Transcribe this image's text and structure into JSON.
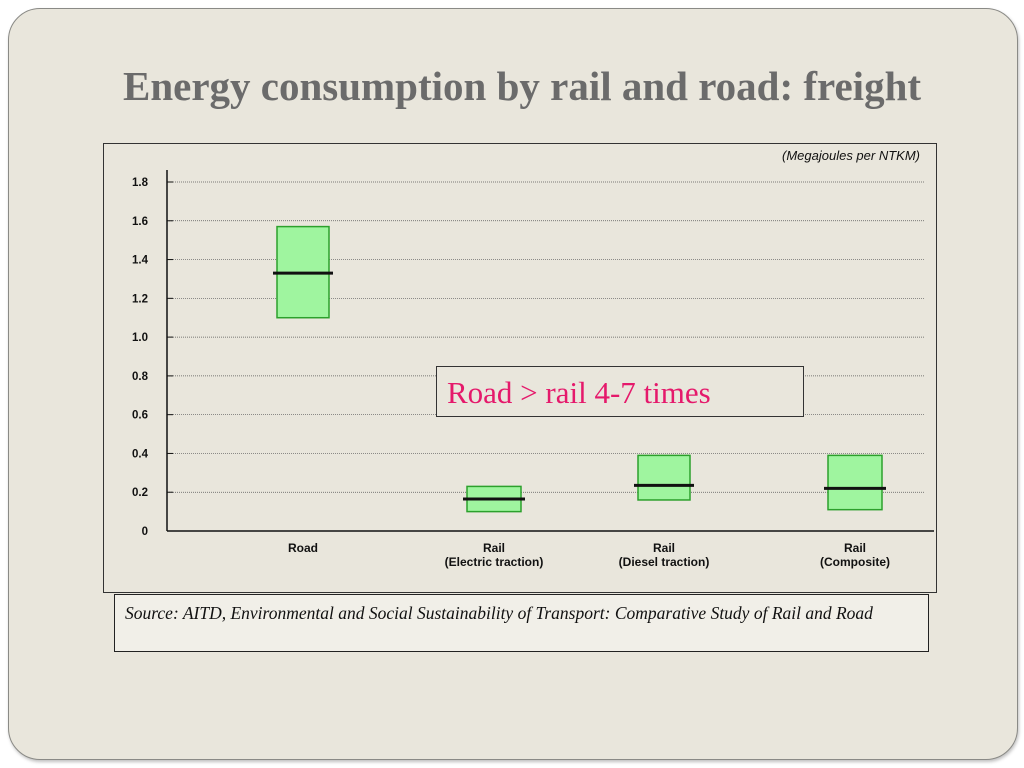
{
  "slide": {
    "title": "Energy consumption by rail and road: freight",
    "callout": "Road > rail 4-7 times",
    "source": "Source: AITD, Environmental and Social Sustainability of Transport: Comparative Study of Rail and Road"
  },
  "chart_data": {
    "type": "bar",
    "subtype": "range-box",
    "unit_label": "(Megajoules per NTKM)",
    "ylim": [
      0,
      1.8
    ],
    "yticks": [
      "0",
      "0.2",
      "0.4",
      "0.6",
      "0.8",
      "1.0",
      "1.2",
      "1.4",
      "1.6",
      "1.8"
    ],
    "grid": true,
    "categories": [
      {
        "lines": [
          "Road"
        ]
      },
      {
        "lines": [
          "Rail",
          "(Electric traction)"
        ]
      },
      {
        "lines": [
          "Rail",
          "(Diesel traction)"
        ]
      },
      {
        "lines": [
          "Rail",
          "(Composite)"
        ]
      }
    ],
    "ranges": [
      {
        "low": 1.1,
        "high": 1.57,
        "mid": 1.33
      },
      {
        "low": 0.1,
        "high": 0.23,
        "mid": 0.165
      },
      {
        "low": 0.16,
        "high": 0.39,
        "mid": 0.235
      },
      {
        "low": 0.11,
        "high": 0.39,
        "mid": 0.22
      }
    ],
    "colors": {
      "box_fill": "#9ff59f",
      "box_stroke": "#2ca02c",
      "median": "#111111",
      "grid": "#555555"
    }
  }
}
